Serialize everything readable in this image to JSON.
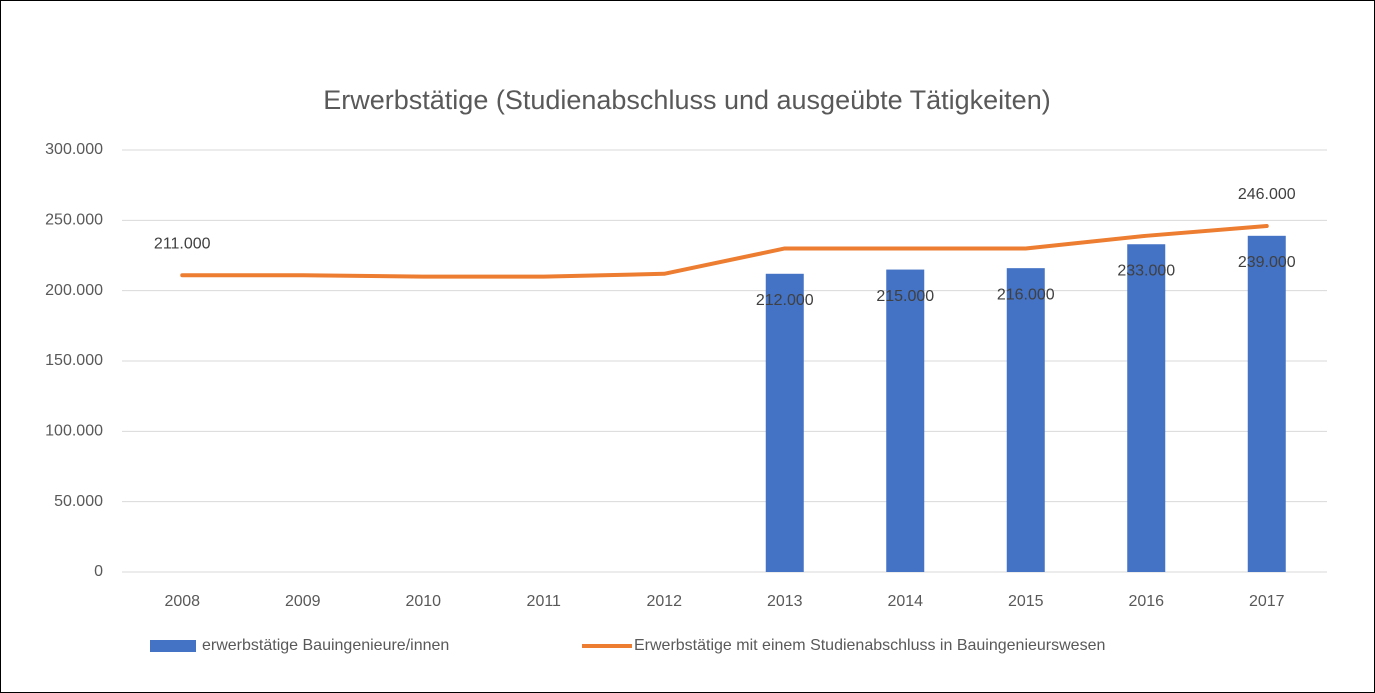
{
  "chart_data": {
    "type": "bar_line",
    "title": "Erwerbstätige (Studienabschluss und ausgeübte Tätigkeiten)",
    "categories": [
      "2008",
      "2009",
      "2010",
      "2011",
      "2012",
      "2013",
      "2014",
      "2015",
      "2016",
      "2017"
    ],
    "series": [
      {
        "name": "erwerbstätige Bauingenieure/innen",
        "type": "bar",
        "color": "#4472c4",
        "values": [
          null,
          null,
          null,
          null,
          null,
          212000,
          215000,
          216000,
          233000,
          239000
        ],
        "value_labels": [
          null,
          null,
          null,
          null,
          null,
          "212.000",
          "215.000",
          "216.000",
          "233.000",
          "239.000"
        ]
      },
      {
        "name": "Erwerbstätige mit einem Studienabschluss in Bauingenieurswesen",
        "type": "line",
        "color": "#ed7d31",
        "values": [
          211000,
          211000,
          210000,
          210000,
          212000,
          230000,
          230000,
          230000,
          239000,
          246000
        ],
        "value_labels": [
          "211.000",
          null,
          null,
          null,
          null,
          null,
          null,
          null,
          null,
          "246.000"
        ]
      }
    ],
    "ylim": [
      0,
      300000
    ],
    "yticks": [
      0,
      {
        "value": 50000,
        "label": "50.000"
      },
      {
        "value": 100000,
        "label": "100.000"
      },
      {
        "value": 150000,
        "label": "150.000"
      },
      {
        "value": 200000,
        "label": "200.000"
      },
      {
        "value": 250000,
        "label": "250.000"
      },
      {
        "value": 300000,
        "label": "300.000"
      }
    ],
    "grid": true,
    "legend": "bottom"
  }
}
